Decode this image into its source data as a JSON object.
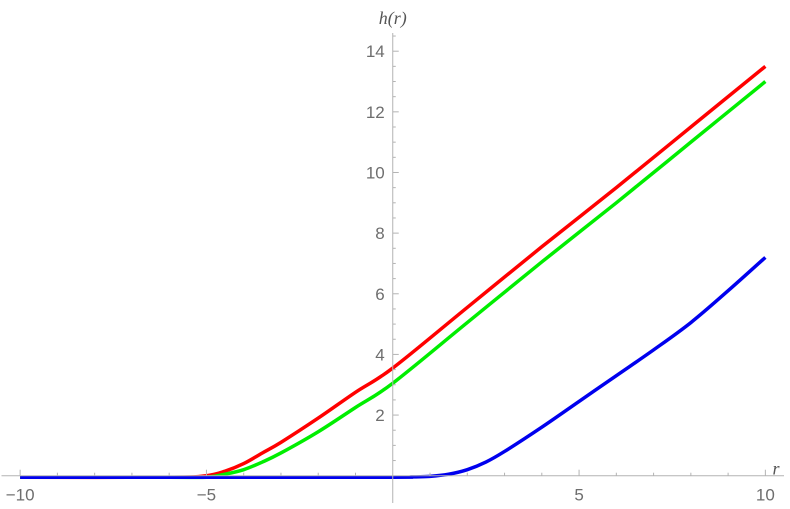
{
  "chart_data": {
    "type": "line",
    "xlabel": "r",
    "ylabel": "h(r)",
    "xlim": [
      -10.5,
      10.5
    ],
    "ylim": [
      -0.9,
      14.6
    ],
    "x_ticks": [
      {
        "value": -10,
        "label": "−10"
      },
      {
        "value": -5,
        "label": "−5"
      },
      {
        "value": 5,
        "label": "5"
      },
      {
        "value": 10,
        "label": "10"
      }
    ],
    "y_ticks": [
      {
        "value": 2,
        "label": "2"
      },
      {
        "value": 4,
        "label": "4"
      },
      {
        "value": 6,
        "label": "6"
      },
      {
        "value": 8,
        "label": "8"
      },
      {
        "value": 10,
        "label": "10"
      },
      {
        "value": 12,
        "label": "12"
      },
      {
        "value": 14,
        "label": "14"
      }
    ],
    "grid": false,
    "legend": "none",
    "series": [
      {
        "color": "#ff0000",
        "x": [
          -10,
          -6,
          -5,
          -4.5,
          -4,
          -3.5,
          -3,
          -2,
          -1,
          0,
          2,
          4,
          6,
          8,
          10
        ],
        "y": [
          -0.05,
          -0.05,
          0.0,
          0.15,
          0.4,
          0.75,
          1.1,
          1.9,
          2.75,
          3.55,
          5.55,
          7.55,
          9.5,
          11.5,
          13.5
        ]
      },
      {
        "color": "#00ee00",
        "x": [
          -10,
          -6,
          -5,
          -4.5,
          -4,
          -3.5,
          -3,
          -2,
          -1,
          0,
          2,
          4,
          6,
          8,
          10
        ],
        "y": [
          -0.05,
          -0.05,
          -0.05,
          0.05,
          0.2,
          0.45,
          0.75,
          1.45,
          2.25,
          3.05,
          5.05,
          7.05,
          9.0,
          11.0,
          13.0
        ]
      },
      {
        "color": "#0000ee",
        "x": [
          -10,
          -5,
          0,
          0.5,
          1,
          1.5,
          2,
          2.5,
          3,
          4,
          5,
          6,
          7,
          8,
          9,
          10
        ],
        "y": [
          -0.05,
          -0.05,
          -0.05,
          -0.04,
          -0.02,
          0.05,
          0.2,
          0.45,
          0.8,
          1.6,
          2.45,
          3.3,
          4.15,
          5.05,
          6.1,
          7.2
        ]
      }
    ]
  }
}
